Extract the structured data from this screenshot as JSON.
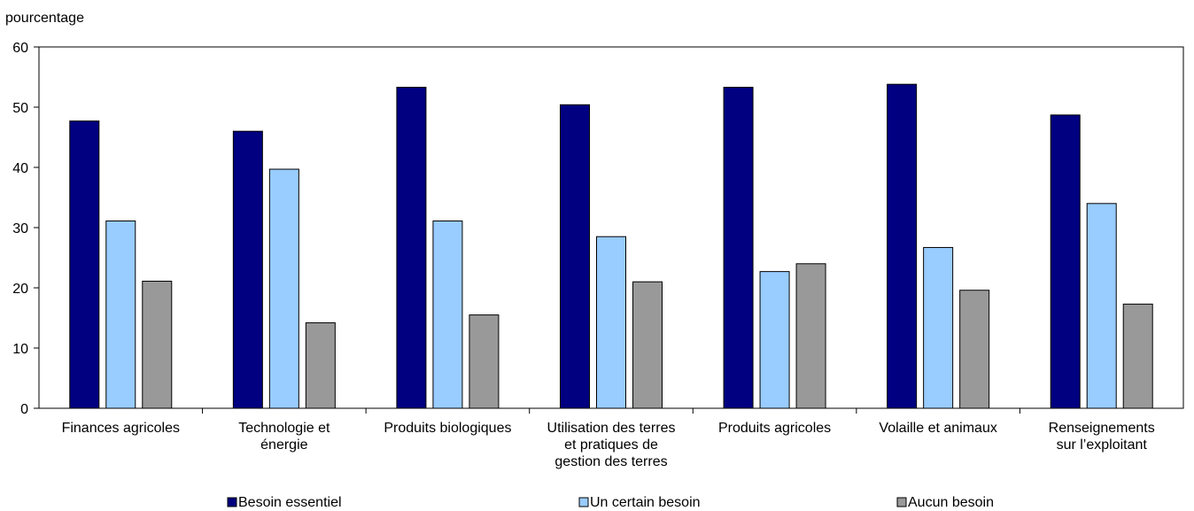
{
  "chart_data": {
    "type": "bar",
    "ylabel": "pourcentage",
    "ylim": [
      0,
      60
    ],
    "yticks": [
      0,
      10,
      20,
      30,
      40,
      50,
      60
    ],
    "categories": [
      [
        "Finances agricoles"
      ],
      [
        "Technologie et",
        "énergie"
      ],
      [
        "Produits biologiques"
      ],
      [
        "Utilisation des terres",
        "et pratiques de",
        "gestion des terres"
      ],
      [
        "Produits agricoles"
      ],
      [
        "Volaille et animaux"
      ],
      [
        "Renseignements",
        "sur l’exploitant"
      ]
    ],
    "series": [
      {
        "name": "Besoin essentiel",
        "color": "#000080",
        "values": [
          47.7,
          46.0,
          53.3,
          50.4,
          53.3,
          53.8,
          48.7
        ]
      },
      {
        "name": "Un certain besoin",
        "color": "#99ccff",
        "values": [
          31.1,
          39.7,
          31.1,
          28.5,
          22.7,
          26.7,
          34.0
        ]
      },
      {
        "name": "Aucun besoin",
        "color": "#999999",
        "values": [
          21.1,
          14.2,
          15.5,
          21.0,
          24.0,
          19.6,
          17.3
        ]
      }
    ],
    "legend_position": "bottom",
    "grid": false
  }
}
